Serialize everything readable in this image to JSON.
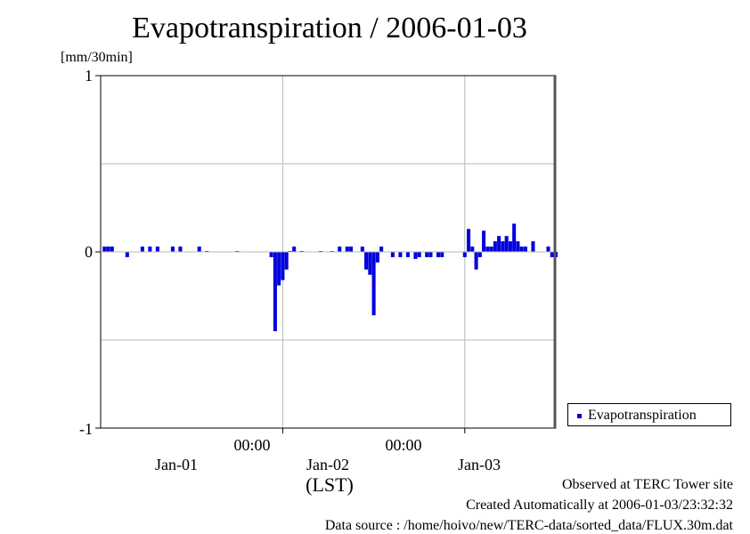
{
  "title": "Evapotranspiration / 2006-01-03",
  "y_unit": "[mm/30min]",
  "y_tick_labels": [
    "1",
    "0",
    "-1"
  ],
  "x_time_labels": [
    "00:00",
    "00:00"
  ],
  "x_date_labels": [
    "Jan-01",
    "Jan-02",
    "Jan-03"
  ],
  "x_zone_label": "(LST)",
  "legend": {
    "label": "Evapotranspiration"
  },
  "footer": {
    "line1": "Observed at TERC Tower site",
    "line2": "Created Automatically at 2006-01-03/23:32:32",
    "line3": "Data source : /home/hoivo/new/TERC-data/sorted_data/FLUX.30m.dat"
  },
  "colors": {
    "bar": "#0000dd",
    "grid": "#b8b8b8",
    "axis": "#000000"
  },
  "chart_data": {
    "type": "bar",
    "title": "Evapotranspiration / 2006-01-03",
    "ylabel": "[mm/30min]",
    "xlabel": "(LST)",
    "ylim": [
      -1,
      1
    ],
    "x_unit": "hours relative to 2006-01-02 00:00 LST",
    "xlim": [
      -24,
      36
    ],
    "grid": true,
    "legend_position": "bottom-right outside plot",
    "series": [
      {
        "name": "Evapotranspiration",
        "values": [
          [
            -23.5,
            0.03
          ],
          [
            -23.0,
            0.03
          ],
          [
            -22.5,
            0.03
          ],
          [
            -20.5,
            -0.03
          ],
          [
            -18.5,
            0.03
          ],
          [
            -17.5,
            0.03
          ],
          [
            -16.5,
            0.03
          ],
          [
            -14.5,
            0.03
          ],
          [
            -13.5,
            0.03
          ],
          [
            -11.0,
            0.03
          ],
          [
            -10.0,
            0.005
          ],
          [
            -6.0,
            0.005
          ],
          [
            -1.5,
            -0.03
          ],
          [
            -1.0,
            -0.45
          ],
          [
            -0.5,
            -0.19
          ],
          [
            0.0,
            -0.16
          ],
          [
            0.5,
            -0.1
          ],
          [
            1.0,
            0.005
          ],
          [
            1.5,
            0.03
          ],
          [
            2.5,
            0.005
          ],
          [
            5.0,
            0.005
          ],
          [
            6.5,
            0.005
          ],
          [
            7.5,
            0.03
          ],
          [
            8.5,
            0.03
          ],
          [
            9.0,
            0.03
          ],
          [
            10.5,
            0.03
          ],
          [
            11.0,
            -0.1
          ],
          [
            11.5,
            -0.13
          ],
          [
            12.0,
            -0.36
          ],
          [
            12.5,
            -0.06
          ],
          [
            13.0,
            0.03
          ],
          [
            14.5,
            -0.03
          ],
          [
            15.5,
            -0.03
          ],
          [
            16.5,
            -0.03
          ],
          [
            17.5,
            -0.04
          ],
          [
            18.0,
            -0.03
          ],
          [
            19.0,
            -0.03
          ],
          [
            19.5,
            -0.03
          ],
          [
            20.5,
            -0.03
          ],
          [
            21.0,
            -0.03
          ],
          [
            24.0,
            -0.03
          ],
          [
            24.5,
            0.13
          ],
          [
            25.0,
            0.03
          ],
          [
            25.5,
            -0.1
          ],
          [
            26.0,
            -0.03
          ],
          [
            26.5,
            0.12
          ],
          [
            27.0,
            0.03
          ],
          [
            27.5,
            0.03
          ],
          [
            28.0,
            0.06
          ],
          [
            28.5,
            0.09
          ],
          [
            29.0,
            0.06
          ],
          [
            29.5,
            0.09
          ],
          [
            30.0,
            0.06
          ],
          [
            30.5,
            0.16
          ],
          [
            31.0,
            0.06
          ],
          [
            31.5,
            0.03
          ],
          [
            32.0,
            0.03
          ],
          [
            33.0,
            0.06
          ],
          [
            35.0,
            0.03
          ],
          [
            35.5,
            -0.03
          ],
          [
            36.0,
            -0.03
          ]
        ]
      }
    ]
  }
}
